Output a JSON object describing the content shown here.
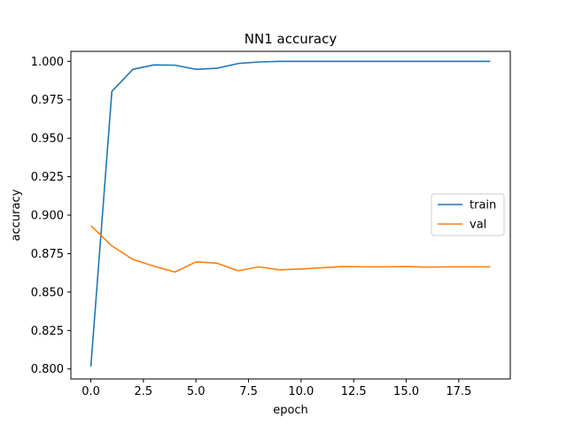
{
  "chart_data": {
    "type": "line",
    "title": "NN1 accuracy",
    "xlabel": "epoch",
    "ylabel": "accuracy",
    "xlim": [
      -0.95,
      19.95
    ],
    "ylim": [
      0.7935,
      1.0065
    ],
    "xticks": [
      0.0,
      2.5,
      5.0,
      7.5,
      10.0,
      12.5,
      15.0,
      17.5
    ],
    "xtick_labels": [
      "0.0",
      "2.5",
      "5.0",
      "7.5",
      "10.0",
      "12.5",
      "15.0",
      "17.5"
    ],
    "yticks": [
      0.8,
      0.825,
      0.85,
      0.875,
      0.9,
      0.925,
      0.95,
      0.975,
      1.0
    ],
    "ytick_labels": [
      "0.800",
      "0.825",
      "0.850",
      "0.875",
      "0.900",
      "0.925",
      "0.950",
      "0.975",
      "1.000"
    ],
    "grid": false,
    "legend_position": "center-right",
    "x": [
      0,
      1,
      2,
      3,
      4,
      5,
      6,
      7,
      8,
      9,
      10,
      11,
      12,
      13,
      14,
      15,
      16,
      17,
      18,
      19
    ],
    "series": [
      {
        "name": "train",
        "color": "#1f77b4",
        "values": [
          0.8015,
          0.9805,
          0.9948,
          0.9977,
          0.9975,
          0.9948,
          0.9955,
          0.9986,
          0.9996,
          1.0,
          1.0,
          1.0,
          1.0,
          1.0,
          1.0,
          1.0,
          1.0,
          1.0,
          1.0,
          1.0
        ]
      },
      {
        "name": "val",
        "color": "#ff7f0e",
        "values": [
          0.8932,
          0.88,
          0.8712,
          0.8668,
          0.863,
          0.8696,
          0.8688,
          0.8638,
          0.8664,
          0.8644,
          0.865,
          0.8658,
          0.8666,
          0.8664,
          0.8664,
          0.8666,
          0.8662,
          0.8664,
          0.8664,
          0.8664
        ]
      }
    ]
  }
}
